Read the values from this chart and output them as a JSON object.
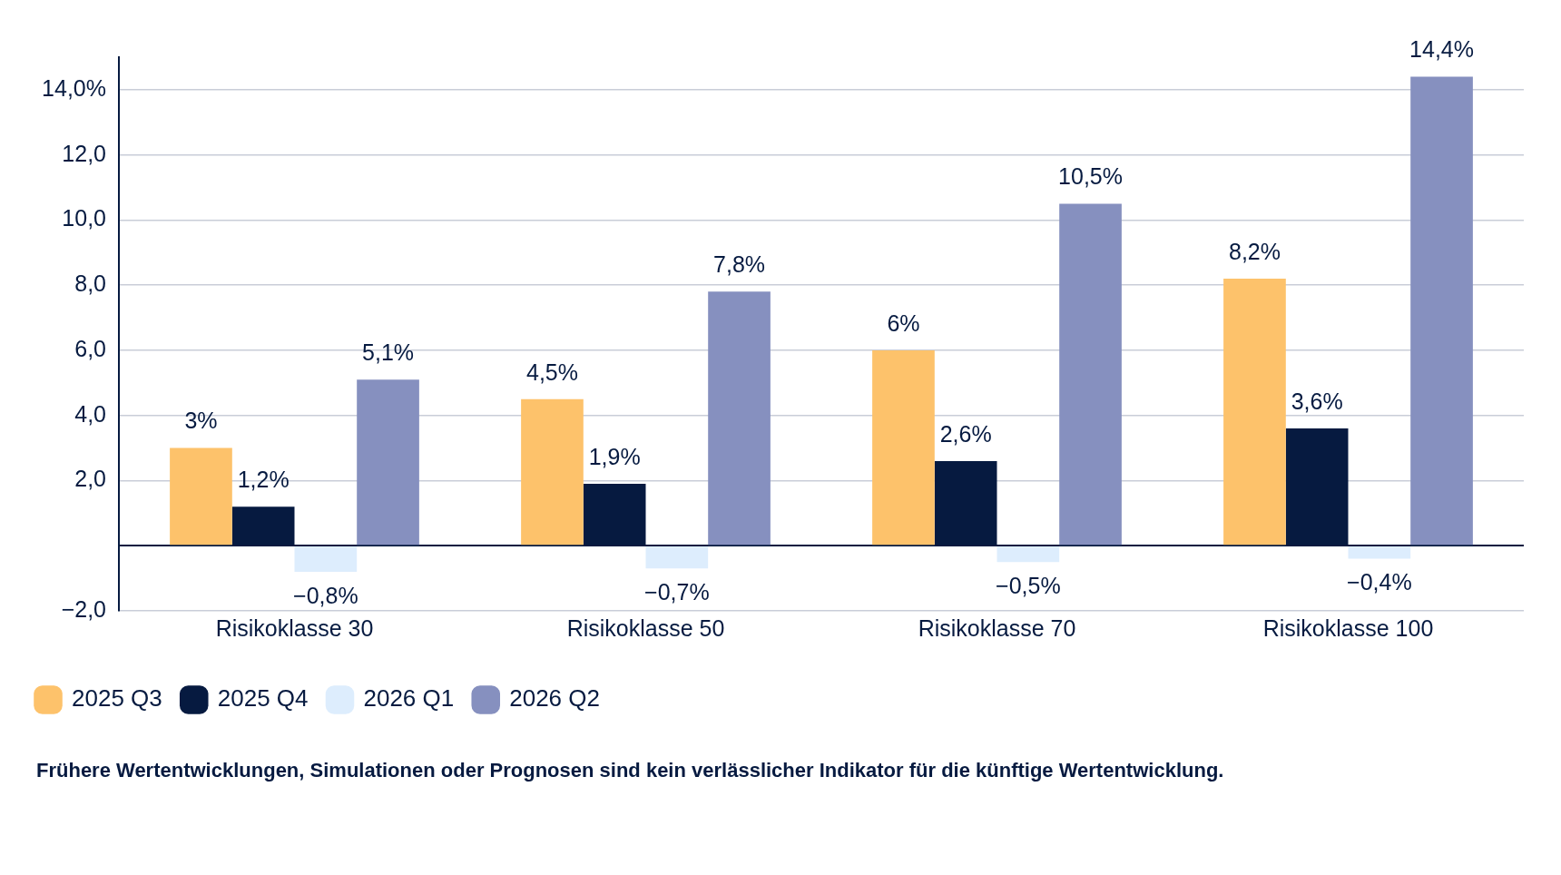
{
  "chart_data": {
    "type": "bar",
    "categories": [
      "Risikoklasse 30",
      "Risikoklasse 50",
      "Risikoklasse 70",
      "Risikoklasse 100"
    ],
    "series": [
      {
        "name": "2025 Q3",
        "color": "#fdc26b",
        "values": [
          3,
          4.5,
          6,
          8.2
        ],
        "value_labels": [
          "3%",
          "4,5%",
          "6%",
          "8,2%"
        ]
      },
      {
        "name": "2025 Q4",
        "color": "#061a40",
        "values": [
          1.2,
          1.9,
          2.6,
          3.6
        ],
        "value_labels": [
          "1,2%",
          "1,9%",
          "2,6%",
          "3,6%"
        ]
      },
      {
        "name": "2026 Q1",
        "color": "#ddedfd",
        "values": [
          -0.8,
          -0.7,
          -0.5,
          -0.4
        ],
        "value_labels": [
          "−0,8%",
          "−0,7%",
          "−0,5%",
          "−0,4%"
        ]
      },
      {
        "name": "2026 Q2",
        "color": "#8690bf",
        "values": [
          5.1,
          7.8,
          10.5,
          14.4
        ],
        "value_labels": [
          "5,1%",
          "7,8%",
          "10,5%",
          "14,4%"
        ]
      }
    ],
    "ylim": [
      -2,
      15
    ],
    "yticks": [
      {
        "value": -2,
        "label": "−2,0"
      },
      {
        "value": 0,
        "label": null
      },
      {
        "value": 2,
        "label": "2,0"
      },
      {
        "value": 4,
        "label": "4,0"
      },
      {
        "value": 6,
        "label": "6,0"
      },
      {
        "value": 8,
        "label": "8,0"
      },
      {
        "value": 10,
        "label": "10,0"
      },
      {
        "value": 12,
        "label": "12,0"
      },
      {
        "value": 14,
        "label": "14,0%"
      }
    ],
    "grid": "y",
    "legend": "bottom left",
    "annotations": [
      "Frühere Wertentwicklungen, Simulationen oder Prognosen sind kein verlässlicher Indikator für die künftige Wertentwicklung."
    ]
  }
}
